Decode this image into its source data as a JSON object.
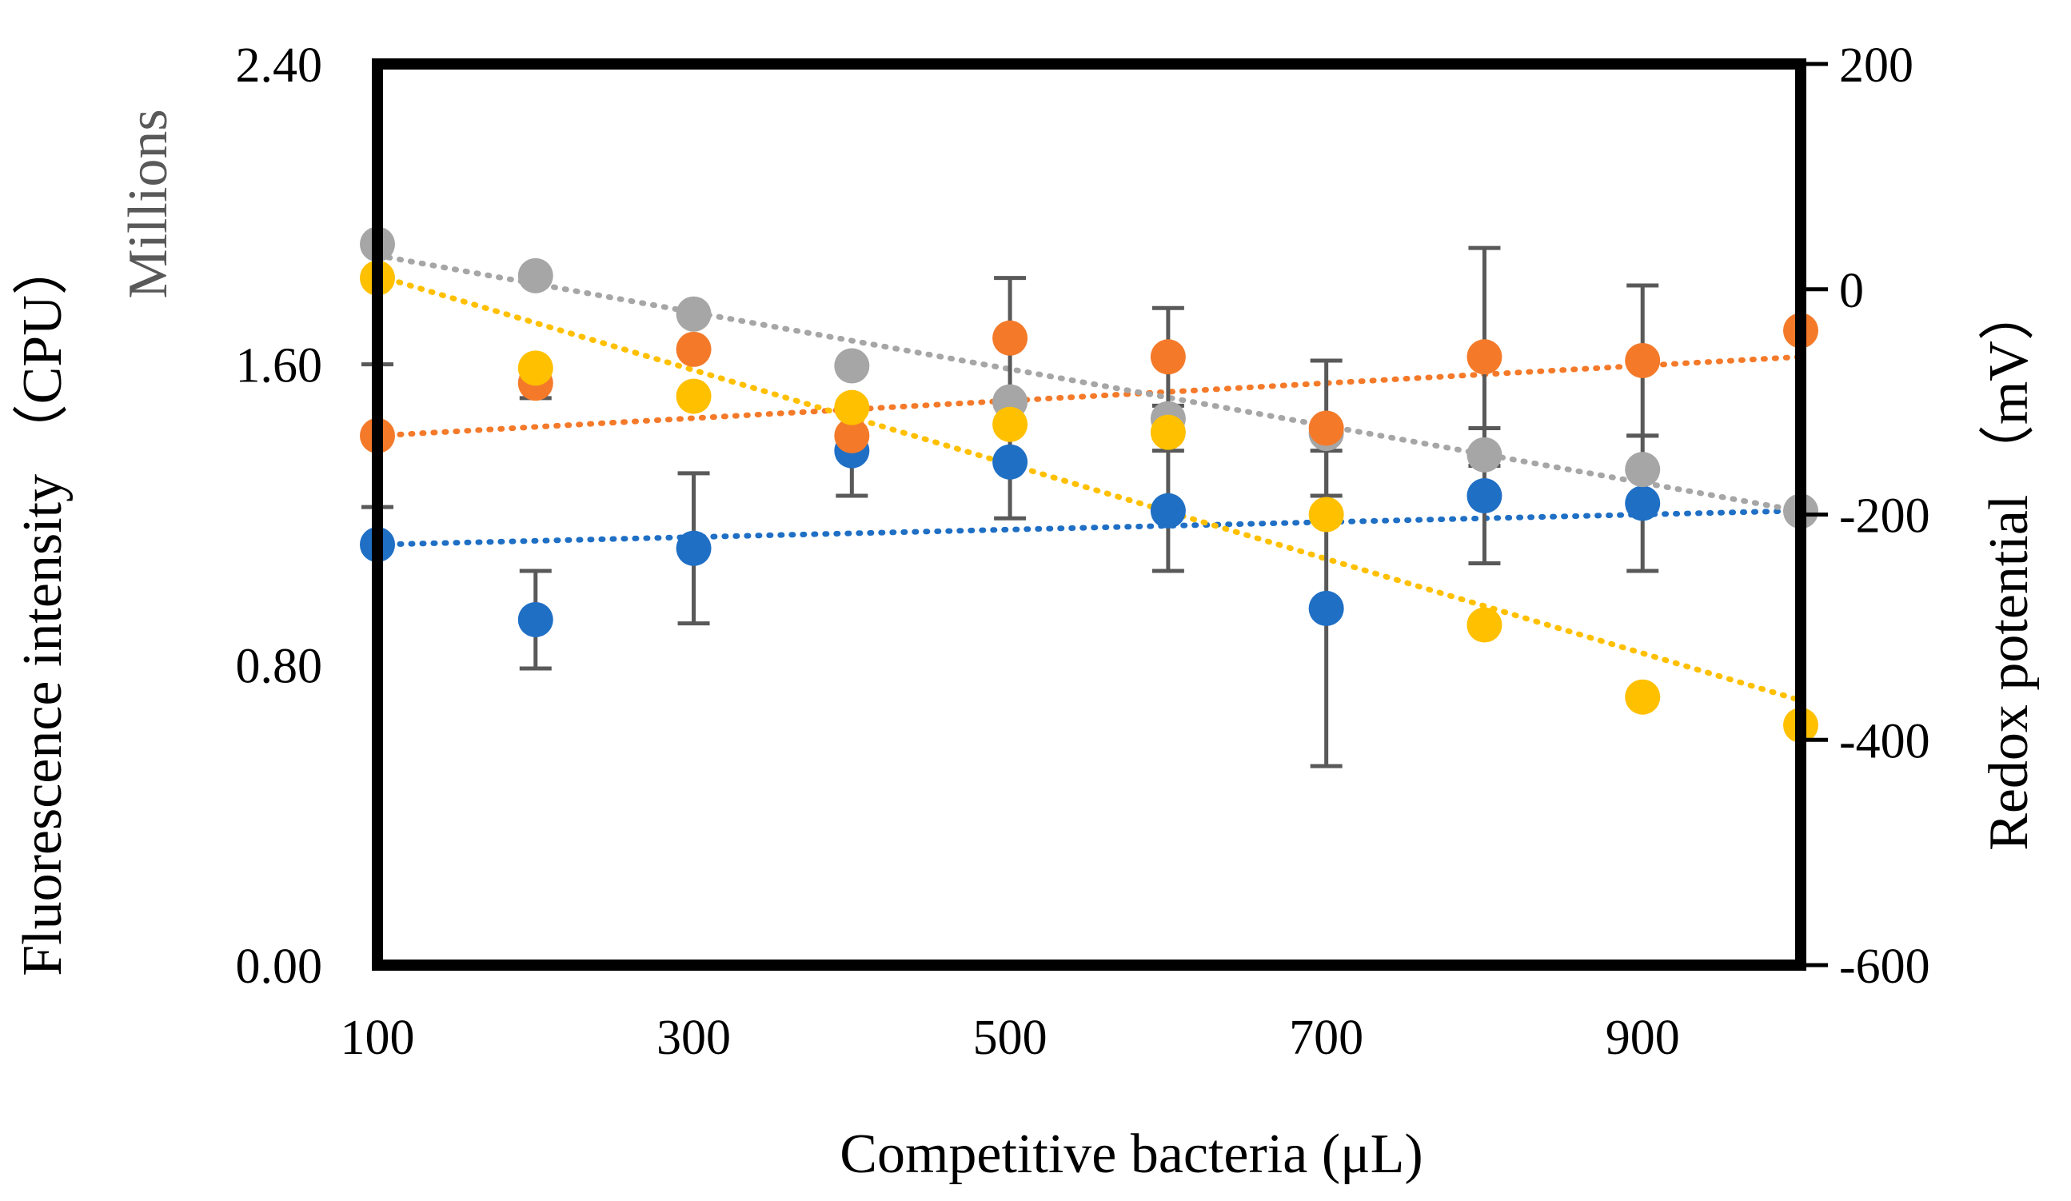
{
  "chart_data": {
    "type": "scatter",
    "x_axis": {
      "label": "Competitive bacteria (μL)",
      "range": [
        100,
        1000
      ],
      "ticks": [
        100,
        300,
        500,
        700,
        900
      ],
      "tick_labels": [
        "100",
        "300",
        "500",
        "700",
        "900"
      ]
    },
    "y_axis_left": {
      "label": "Fluorescence intensity （CPU）",
      "units_label": "Millions",
      "range": [
        0,
        2.4
      ],
      "ticks": [
        0,
        0.8,
        1.6,
        2.4
      ],
      "tick_labels": [
        "0.00",
        "0.80",
        "1.60",
        "2.40"
      ]
    },
    "y_axis_right": {
      "label": "Redox potential （mV）",
      "range": [
        -600,
        200
      ],
      "ticks": [
        -600,
        -400,
        -200,
        0,
        200
      ],
      "tick_labels": [
        "-600",
        "-400",
        "-200",
        "0",
        "200"
      ]
    },
    "series": [
      {
        "name": "blue",
        "axis": "left",
        "color": "#1f6fc5",
        "x": [
          100,
          200,
          300,
          400,
          500,
          600,
          700,
          800,
          900
        ],
        "y": [
          1.12,
          0.92,
          1.11,
          1.37,
          1.34,
          1.21,
          0.95,
          1.25,
          1.23
        ],
        "error": [
          0.0,
          0.13,
          0.2,
          0.12,
          0.15,
          0.16,
          0.42,
          0.18,
          0.18
        ],
        "trend": {
          "x0": 100,
          "y0": 1.12,
          "x1": 1000,
          "y1": 1.21
        }
      },
      {
        "name": "orange",
        "axis": "left",
        "color": "#f47a2a",
        "x": [
          100,
          200,
          300,
          400,
          500,
          600,
          700,
          800,
          900,
          1000
        ],
        "y": [
          1.41,
          1.55,
          1.64,
          1.41,
          1.67,
          1.62,
          1.43,
          1.62,
          1.61,
          1.69
        ],
        "error": [
          0.19,
          0.04,
          0.0,
          0.0,
          0.16,
          0.13,
          0.18,
          0.29,
          0.2,
          0.0
        ],
        "trend": {
          "x0": 100,
          "y0": 1.41,
          "x1": 1000,
          "y1": 1.62
        }
      },
      {
        "name": "gray",
        "axis": "right",
        "color": "#a6a6a6",
        "x": [
          100,
          200,
          300,
          400,
          500,
          600,
          700,
          800,
          900,
          1000
        ],
        "y": [
          40,
          12,
          -22,
          -68,
          -100,
          -115,
          -128,
          -147,
          -160,
          -197
        ],
        "trend": {
          "x0": 100,
          "y0": 30,
          "x1": 1000,
          "y1": -197
        }
      },
      {
        "name": "yellow",
        "axis": "right",
        "color": "#ffc000",
        "x": [
          100,
          200,
          300,
          400,
          500,
          600,
          700,
          800,
          900,
          1000
        ],
        "y": [
          10,
          -70,
          -95,
          -105,
          -120,
          -127,
          -200,
          -298,
          -362,
          -387
        ],
        "trend": {
          "x0": 100,
          "y0": 12,
          "x1": 1000,
          "y1": -365
        }
      }
    ]
  }
}
